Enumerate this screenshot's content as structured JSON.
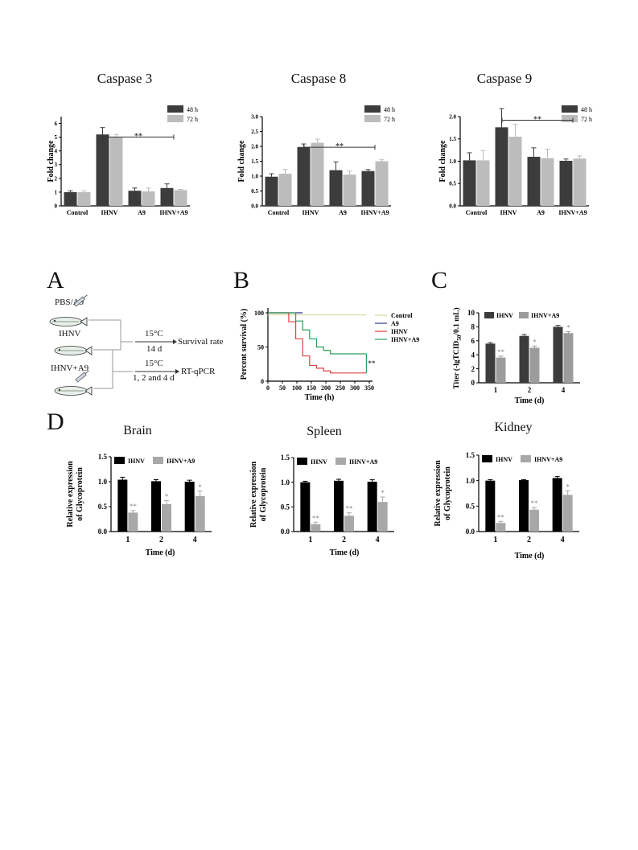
{
  "caspase_panels": [
    {
      "title": "Caspase 3",
      "ylabel": "Fold change",
      "yticks": [
        "0",
        "1",
        "2",
        "3",
        "4",
        "5",
        "6"
      ],
      "categories": [
        "Control",
        "IHNV",
        "A9",
        "IHNV+A9"
      ],
      "legend": [
        "48 h",
        "72 h"
      ],
      "sig": "**"
    },
    {
      "title": "Caspase 8",
      "ylabel": "Fold change",
      "yticks": [
        "0.0",
        "0.5",
        "1.0",
        "1.5",
        "2.0",
        "2.5",
        "3.0"
      ],
      "categories": [
        "Control",
        "IHNV",
        "A9",
        "IHNV+A9"
      ],
      "legend": [
        "48 h",
        "72 h"
      ],
      "sig": "**"
    },
    {
      "title": "Caspase 9",
      "ylabel": "Fold change",
      "yticks": [
        "0.0",
        "0.5",
        "1.0",
        "1.5",
        "2.0"
      ],
      "categories": [
        "Control",
        "IHNV",
        "A9",
        "IHNV+A9"
      ],
      "legend": [
        "48 h",
        "72 h"
      ],
      "sig": "**"
    }
  ],
  "panel_a": {
    "letter": "A",
    "groups": [
      "PBS/A9",
      "IHNV",
      "IHNV+A9"
    ],
    "arrow1": {
      "temp": "15°C",
      "duration": "14 d",
      "result": "Survival rate"
    },
    "arrow2": {
      "temp": "15°C",
      "duration": "1, 2 and 4 d",
      "result": "RT-qPCR"
    }
  },
  "panel_b": {
    "letter": "B",
    "ylabel": "Percent survival (%)",
    "xlabel": "Time (h)",
    "xticks": [
      "0",
      "50",
      "100",
      "150",
      "200",
      "250",
      "300",
      "350"
    ],
    "yticks": [
      "0",
      "50",
      "100"
    ],
    "legend": [
      "Control",
      "A9",
      "IHNV",
      "IHNV+A9"
    ],
    "sig": "**"
  },
  "panel_c": {
    "letter": "C",
    "ylabel_pre": "Titer (-lgTCID",
    "ylabel_sub": "50",
    "ylabel_post": "/0.1 mL)",
    "xlabel": "Time (d)",
    "categories": [
      "1",
      "2",
      "4"
    ],
    "yticks": [
      "0",
      "2",
      "4",
      "6",
      "8",
      "10"
    ],
    "legend": [
      "IHNV",
      "IHNV+A9"
    ],
    "sig": [
      "**",
      "*",
      "*"
    ]
  },
  "panel_d": {
    "letter": "D",
    "ylabel1": "Relative expression",
    "ylabel2": "of Glycoprotein",
    "xlabel": "Time (d)",
    "legend": [
      "IHNV",
      "IHNV+A9"
    ],
    "categories": [
      "1",
      "2",
      "4"
    ],
    "yticks": [
      "0.0",
      "0.5",
      "1.0",
      "1.5"
    ],
    "titles": [
      "Brain",
      "Spleen",
      "Kidney"
    ],
    "sigs": [
      [
        "**",
        "*",
        "*"
      ],
      [
        "**",
        "**",
        "*"
      ],
      [
        "**",
        "**",
        "*"
      ]
    ]
  },
  "chart_data": [
    {
      "type": "bar",
      "title": "Caspase 3",
      "ylabel": "Fold change",
      "ylim": [
        0,
        6.5
      ],
      "categories": [
        "Control",
        "IHNV",
        "A9",
        "IHNV+A9"
      ],
      "series": [
        {
          "name": "48 h",
          "values": [
            1.0,
            5.2,
            1.1,
            1.3
          ],
          "errors": [
            0.1,
            0.5,
            0.2,
            0.3
          ]
        },
        {
          "name": "72 h",
          "values": [
            1.0,
            5.0,
            1.05,
            1.15
          ],
          "errors": [
            0.1,
            0.2,
            0.25,
            0.05
          ]
        }
      ]
    },
    {
      "type": "bar",
      "title": "Caspase 8",
      "ylabel": "Fold change",
      "ylim": [
        0,
        3.0
      ],
      "categories": [
        "Control",
        "IHNV",
        "A9",
        "IHNV+A9"
      ],
      "series": [
        {
          "name": "48 h",
          "values": [
            0.98,
            1.98,
            1.2,
            1.17
          ],
          "errors": [
            0.1,
            0.1,
            0.28,
            0.05
          ]
        },
        {
          "name": "72 h",
          "values": [
            1.08,
            2.12,
            1.05,
            1.5
          ],
          "errors": [
            0.15,
            0.12,
            0.12,
            0.05
          ]
        }
      ]
    },
    {
      "type": "bar",
      "title": "Caspase 9",
      "ylabel": "Fold change",
      "ylim": [
        0,
        2.0
      ],
      "categories": [
        "Control",
        "IHNV",
        "A9",
        "IHNV+A9"
      ],
      "series": [
        {
          "name": "48 h",
          "values": [
            1.02,
            1.76,
            1.1,
            1.01
          ],
          "errors": [
            0.17,
            0.42,
            0.2,
            0.04
          ]
        },
        {
          "name": "72 h",
          "values": [
            1.02,
            1.55,
            1.07,
            1.06
          ],
          "errors": [
            0.22,
            0.28,
            0.2,
            0.06
          ]
        }
      ]
    },
    {
      "type": "line",
      "title": "",
      "xlabel": "Time (h)",
      "ylabel": "Percent survival (%)",
      "xlim": [
        0,
        350
      ],
      "ylim": [
        0,
        100
      ],
      "series": [
        {
          "name": "Control",
          "color": "#d9d4a2",
          "x": [
            0,
            340
          ],
          "y": [
            97,
            97
          ]
        },
        {
          "name": "A9",
          "color": "#2d3c8c",
          "x": [
            0,
            120
          ],
          "y": [
            100,
            100
          ]
        },
        {
          "name": "IHNV",
          "color": "#e04040",
          "x": [
            0,
            72,
            96,
            120,
            144,
            168,
            192,
            216,
            240,
            264,
            288,
            312,
            336,
            340
          ],
          "y": [
            100,
            87,
            62,
            37,
            23,
            19,
            15,
            12,
            12,
            12,
            12,
            12,
            12,
            12
          ]
        },
        {
          "name": "IHNV+A9",
          "color": "#2aa05a",
          "x": [
            0,
            72,
            96,
            120,
            144,
            168,
            192,
            216,
            240,
            264,
            288,
            312,
            336,
            340
          ],
          "y": [
            100,
            100,
            88,
            75,
            62,
            50,
            45,
            40,
            40,
            40,
            40,
            40,
            40,
            40
          ]
        }
      ]
    },
    {
      "type": "bar",
      "title": "",
      "xlabel": "Time (d)",
      "ylabel": "Titer (-lgTCID50/0.1 mL)",
      "ylim": [
        0,
        10
      ],
      "categories": [
        "1",
        "2",
        "4"
      ],
      "series": [
        {
          "name": "IHNV",
          "values": [
            5.6,
            6.7,
            8.0
          ],
          "errors": [
            0.15,
            0.2,
            0.2
          ]
        },
        {
          "name": "IHNV+A9",
          "values": [
            3.6,
            5.0,
            7.1
          ],
          "errors": [
            0.2,
            0.25,
            0.2
          ]
        }
      ]
    },
    {
      "type": "bar",
      "title": "Brain",
      "xlabel": "Time (d)",
      "ylabel": "Relative expression of Glycoprotein",
      "ylim": [
        0,
        1.5
      ],
      "categories": [
        "1",
        "2",
        "4"
      ],
      "series": [
        {
          "name": "IHNV",
          "values": [
            1.04,
            1.01,
            1.0
          ],
          "errors": [
            0.05,
            0.03,
            0.03
          ]
        },
        {
          "name": "IHNV+A9",
          "values": [
            0.38,
            0.55,
            0.71
          ],
          "errors": [
            0.04,
            0.07,
            0.1
          ]
        }
      ]
    },
    {
      "type": "bar",
      "title": "Spleen",
      "xlabel": "Time (d)",
      "ylabel": "Relative expression of Glycoprotein",
      "ylim": [
        0,
        1.5
      ],
      "categories": [
        "1",
        "2",
        "4"
      ],
      "series": [
        {
          "name": "IHNV",
          "values": [
            1.0,
            1.03,
            1.01
          ],
          "errors": [
            0.02,
            0.03,
            0.04
          ]
        },
        {
          "name": "IHNV+A9",
          "values": [
            0.15,
            0.32,
            0.6
          ],
          "errors": [
            0.04,
            0.06,
            0.1
          ]
        }
      ]
    },
    {
      "type": "bar",
      "title": "Kidney",
      "xlabel": "Time (d)",
      "ylabel": "Relative expression of Glycoprotein",
      "ylim": [
        0,
        1.5
      ],
      "categories": [
        "1",
        "2",
        "4"
      ],
      "series": [
        {
          "name": "IHNV",
          "values": [
            1.0,
            1.01,
            1.05
          ],
          "errors": [
            0.02,
            0.01,
            0.03
          ]
        },
        {
          "name": "IHNV+A9",
          "values": [
            0.17,
            0.43,
            0.72
          ],
          "errors": [
            0.03,
            0.04,
            0.08
          ]
        }
      ]
    }
  ]
}
